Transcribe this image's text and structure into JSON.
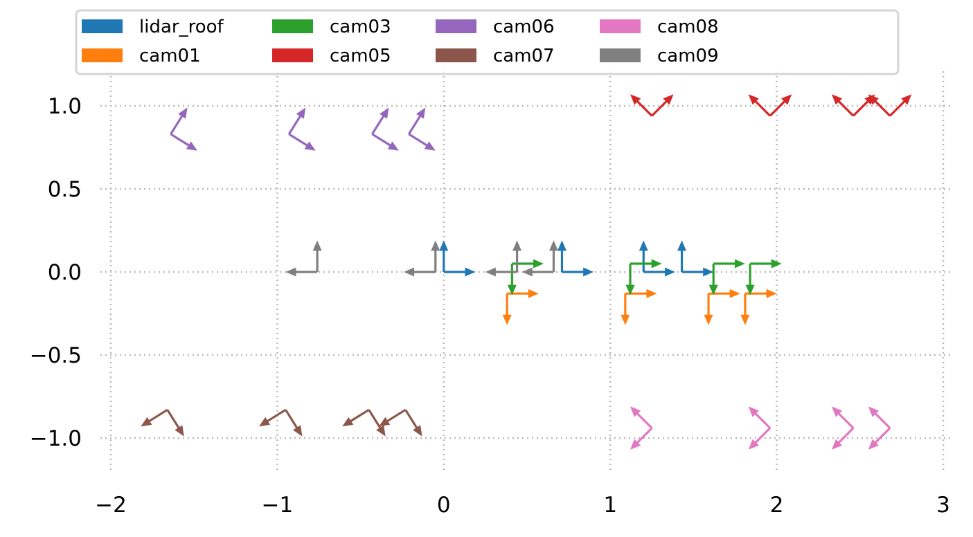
{
  "chart_data": {
    "type": "quiver",
    "title": "",
    "xlabel": "",
    "ylabel": "",
    "xlim": [
      -2.0,
      3.0
    ],
    "ylim": [
      -1.2,
      1.2
    ],
    "x_ticks": [
      -2,
      -1,
      0,
      1,
      2,
      3
    ],
    "x_tick_labels": [
      "−2",
      "−1",
      "0",
      "1",
      "2",
      "3"
    ],
    "y_ticks": [
      1.0,
      0.5,
      0.0,
      -0.5,
      -1.0
    ],
    "y_tick_labels": [
      "1.0",
      "0.5",
      "0.0",
      "−0.5",
      "−1.0"
    ],
    "grid": "dotted",
    "legend_position": "top, outside, 5 columns",
    "series": [
      {
        "name": "lidar_roof",
        "color": "#1f77b4",
        "arrows": [
          {
            "x": 0.0,
            "y": 0.0,
            "dx": 0.19,
            "dy": 0.0
          },
          {
            "x": 0.0,
            "y": 0.0,
            "dx": 0.0,
            "dy": 0.19
          },
          {
            "x": 0.71,
            "y": 0.0,
            "dx": 0.19,
            "dy": 0.0
          },
          {
            "x": 0.71,
            "y": 0.0,
            "dx": 0.0,
            "dy": 0.19
          },
          {
            "x": 1.2,
            "y": 0.0,
            "dx": 0.19,
            "dy": 0.0
          },
          {
            "x": 1.2,
            "y": 0.0,
            "dx": 0.0,
            "dy": 0.19
          },
          {
            "x": 1.43,
            "y": 0.0,
            "dx": 0.19,
            "dy": 0.0
          },
          {
            "x": 1.43,
            "y": 0.0,
            "dx": 0.0,
            "dy": 0.19
          }
        ]
      },
      {
        "name": "cam01",
        "color": "#ff7f0e",
        "arrows": [
          {
            "x": 0.38,
            "y": -0.13,
            "dx": 0.19,
            "dy": 0.0
          },
          {
            "x": 0.38,
            "y": -0.13,
            "dx": 0.0,
            "dy": -0.19
          },
          {
            "x": 1.09,
            "y": -0.13,
            "dx": 0.19,
            "dy": 0.0
          },
          {
            "x": 1.09,
            "y": -0.13,
            "dx": 0.0,
            "dy": -0.19
          },
          {
            "x": 1.59,
            "y": -0.13,
            "dx": 0.19,
            "dy": 0.0
          },
          {
            "x": 1.59,
            "y": -0.13,
            "dx": 0.0,
            "dy": -0.19
          },
          {
            "x": 1.81,
            "y": -0.13,
            "dx": 0.19,
            "dy": 0.0
          },
          {
            "x": 1.81,
            "y": -0.13,
            "dx": 0.0,
            "dy": -0.19
          }
        ]
      },
      {
        "name": "cam03",
        "color": "#2ca02c",
        "arrows": [
          {
            "x": 0.41,
            "y": 0.05,
            "dx": 0.19,
            "dy": 0.0
          },
          {
            "x": 0.41,
            "y": 0.05,
            "dx": 0.0,
            "dy": -0.19
          },
          {
            "x": 1.12,
            "y": 0.05,
            "dx": 0.19,
            "dy": 0.0
          },
          {
            "x": 1.12,
            "y": 0.05,
            "dx": 0.0,
            "dy": -0.19
          },
          {
            "x": 1.62,
            "y": 0.05,
            "dx": 0.19,
            "dy": 0.0
          },
          {
            "x": 1.62,
            "y": 0.05,
            "dx": 0.0,
            "dy": -0.19
          },
          {
            "x": 1.84,
            "y": 0.05,
            "dx": 0.19,
            "dy": 0.0
          },
          {
            "x": 1.84,
            "y": 0.05,
            "dx": 0.0,
            "dy": -0.19
          }
        ]
      },
      {
        "name": "cam05",
        "color": "#d62728",
        "arrows": [
          {
            "x": 1.25,
            "y": 0.94,
            "dx": -0.13,
            "dy": 0.13
          },
          {
            "x": 1.25,
            "y": 0.94,
            "dx": 0.13,
            "dy": 0.13
          },
          {
            "x": 1.96,
            "y": 0.94,
            "dx": -0.13,
            "dy": 0.13
          },
          {
            "x": 1.96,
            "y": 0.94,
            "dx": 0.13,
            "dy": 0.13
          },
          {
            "x": 2.46,
            "y": 0.94,
            "dx": -0.13,
            "dy": 0.13
          },
          {
            "x": 2.46,
            "y": 0.94,
            "dx": 0.13,
            "dy": 0.13
          },
          {
            "x": 2.68,
            "y": 0.94,
            "dx": -0.13,
            "dy": 0.13
          },
          {
            "x": 2.68,
            "y": 0.94,
            "dx": 0.13,
            "dy": 0.13
          }
        ]
      },
      {
        "name": "cam06",
        "color": "#9467bd",
        "arrows": [
          {
            "x": -1.64,
            "y": 0.83,
            "dx": 0.1,
            "dy": 0.16
          },
          {
            "x": -1.64,
            "y": 0.83,
            "dx": 0.16,
            "dy": -0.1
          },
          {
            "x": -0.93,
            "y": 0.83,
            "dx": 0.1,
            "dy": 0.16
          },
          {
            "x": -0.93,
            "y": 0.83,
            "dx": 0.16,
            "dy": -0.1
          },
          {
            "x": -0.43,
            "y": 0.83,
            "dx": 0.1,
            "dy": 0.16
          },
          {
            "x": -0.43,
            "y": 0.83,
            "dx": 0.16,
            "dy": -0.1
          },
          {
            "x": -0.21,
            "y": 0.83,
            "dx": 0.1,
            "dy": 0.16
          },
          {
            "x": -0.21,
            "y": 0.83,
            "dx": 0.16,
            "dy": -0.1
          }
        ]
      },
      {
        "name": "cam07",
        "color": "#8c564b",
        "arrows": [
          {
            "x": -1.66,
            "y": -0.83,
            "dx": -0.16,
            "dy": -0.1
          },
          {
            "x": -1.66,
            "y": -0.83,
            "dx": 0.1,
            "dy": -0.16
          },
          {
            "x": -0.95,
            "y": -0.83,
            "dx": -0.16,
            "dy": -0.1
          },
          {
            "x": -0.95,
            "y": -0.83,
            "dx": 0.1,
            "dy": -0.16
          },
          {
            "x": -0.45,
            "y": -0.83,
            "dx": -0.16,
            "dy": -0.1
          },
          {
            "x": -0.45,
            "y": -0.83,
            "dx": 0.1,
            "dy": -0.16
          },
          {
            "x": -0.23,
            "y": -0.83,
            "dx": -0.16,
            "dy": -0.1
          },
          {
            "x": -0.23,
            "y": -0.83,
            "dx": 0.1,
            "dy": -0.16
          }
        ]
      },
      {
        "name": "cam08",
        "color": "#e377c2",
        "arrows": [
          {
            "x": 1.25,
            "y": -0.94,
            "dx": -0.13,
            "dy": 0.13
          },
          {
            "x": 1.25,
            "y": -0.94,
            "dx": -0.13,
            "dy": -0.13
          },
          {
            "x": 1.96,
            "y": -0.94,
            "dx": -0.13,
            "dy": 0.13
          },
          {
            "x": 1.96,
            "y": -0.94,
            "dx": -0.13,
            "dy": -0.13
          },
          {
            "x": 2.46,
            "y": -0.94,
            "dx": -0.13,
            "dy": 0.13
          },
          {
            "x": 2.46,
            "y": -0.94,
            "dx": -0.13,
            "dy": -0.13
          },
          {
            "x": 2.68,
            "y": -0.94,
            "dx": -0.13,
            "dy": 0.13
          },
          {
            "x": 2.68,
            "y": -0.94,
            "dx": -0.13,
            "dy": -0.13
          }
        ]
      },
      {
        "name": "cam09",
        "color": "#7f7f7f",
        "arrows": [
          {
            "x": -0.76,
            "y": 0.0,
            "dx": -0.19,
            "dy": 0.0
          },
          {
            "x": -0.76,
            "y": 0.0,
            "dx": 0.0,
            "dy": 0.19
          },
          {
            "x": -0.05,
            "y": 0.0,
            "dx": -0.19,
            "dy": 0.0
          },
          {
            "x": -0.05,
            "y": 0.0,
            "dx": 0.0,
            "dy": 0.19
          },
          {
            "x": 0.44,
            "y": 0.0,
            "dx": -0.19,
            "dy": 0.0
          },
          {
            "x": 0.44,
            "y": 0.0,
            "dx": 0.0,
            "dy": 0.19
          },
          {
            "x": 0.66,
            "y": 0.0,
            "dx": -0.19,
            "dy": 0.0
          },
          {
            "x": 0.66,
            "y": 0.0,
            "dx": 0.0,
            "dy": 0.19
          }
        ]
      }
    ]
  }
}
